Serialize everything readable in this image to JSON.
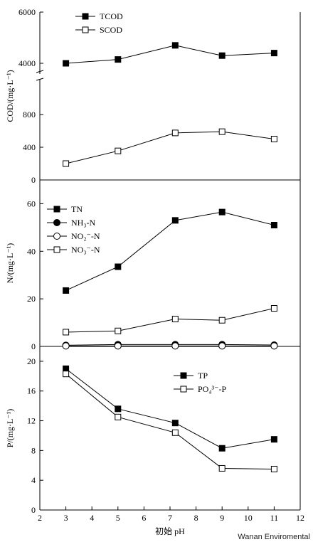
{
  "watermark": "Wanan Enviromental",
  "chart_data": [
    {
      "id": "cod",
      "type": "line",
      "ylabel": "COD/(mg·L⁻¹)",
      "broken_axis": true,
      "lower_ylim": [
        0,
        1000
      ],
      "upper_ylim": [
        3500,
        6000
      ],
      "yticks": [
        0,
        400,
        800,
        4000,
        6000
      ],
      "legend": "top-left",
      "series": [
        {
          "name": "TCOD",
          "marker": "filled-square",
          "x": [
            3,
            5,
            7.2,
            9,
            11
          ],
          "y": [
            4000,
            4150,
            4700,
            4300,
            4400
          ]
        },
        {
          "name": "SCOD",
          "marker": "open-square",
          "x": [
            3,
            5,
            7.2,
            9,
            11
          ],
          "y": [
            200,
            355,
            575,
            590,
            500
          ]
        }
      ]
    },
    {
      "id": "nitrogen",
      "type": "line",
      "ylabel": "N/(mg·L⁻¹)",
      "ylim": [
        0,
        70
      ],
      "yticks": [
        0,
        20,
        40,
        60
      ],
      "legend": "top-left",
      "series": [
        {
          "name": "TN",
          "marker": "filled-square",
          "x": [
            3,
            5,
            7.2,
            9,
            11
          ],
          "y": [
            23.5,
            33.5,
            53,
            56.5,
            51
          ]
        },
        {
          "name": "NH₃-N",
          "marker": "filled-circle",
          "x": [
            3,
            5,
            7.2,
            9,
            11
          ],
          "y": [
            0.5,
            0.8,
            0.8,
            0.8,
            0.6
          ]
        },
        {
          "name": "NO₂⁻-N",
          "marker": "open-circle",
          "x": [
            3,
            5,
            7.2,
            9,
            11
          ],
          "y": [
            0.2,
            0.2,
            0.2,
            0.2,
            0.2
          ]
        },
        {
          "name": "NO₃⁻-N",
          "marker": "open-square",
          "x": [
            3,
            5,
            7.2,
            9,
            11
          ],
          "y": [
            6,
            6.5,
            11.5,
            11,
            16
          ]
        }
      ]
    },
    {
      "id": "phosphorus",
      "type": "line",
      "ylabel": "P/(mg·L⁻¹)",
      "ylim": [
        0,
        22
      ],
      "yticks": [
        0,
        4,
        8,
        12,
        16,
        20
      ],
      "xlabel": "初始 pH",
      "xlim": [
        2,
        12
      ],
      "xticks": [
        2,
        3,
        4,
        5,
        6,
        7,
        8,
        9,
        10,
        11,
        12
      ],
      "legend": "top-right",
      "series": [
        {
          "name": "TP",
          "marker": "filled-square",
          "x": [
            3,
            5,
            7.2,
            9,
            11
          ],
          "y": [
            19,
            13.6,
            11.7,
            8.3,
            9.5
          ]
        },
        {
          "name": "PO₄³⁻-P",
          "marker": "open-square",
          "x": [
            3,
            5,
            7.2,
            9,
            11
          ],
          "y": [
            18.3,
            12.5,
            10.4,
            5.6,
            5.5
          ]
        }
      ]
    }
  ]
}
